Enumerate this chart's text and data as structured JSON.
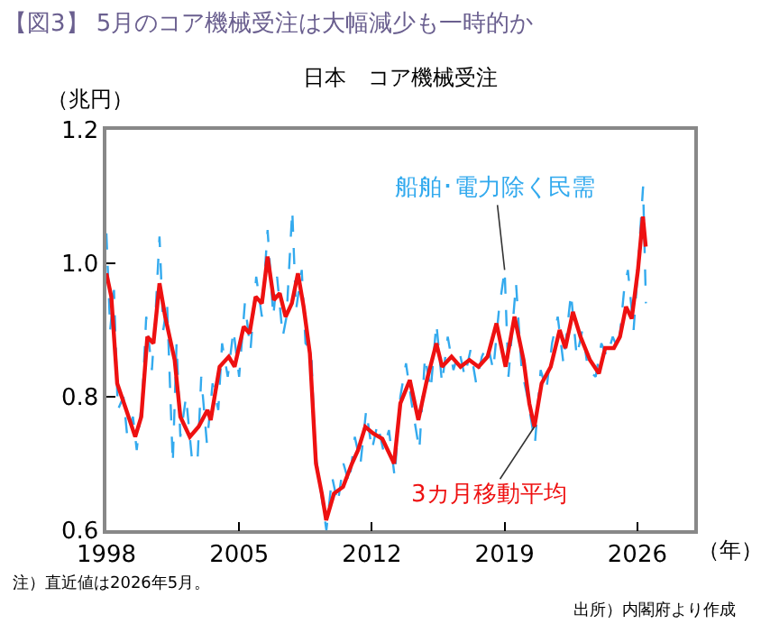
{
  "chart_data": {
    "type": "line",
    "title": "【図3】 5月のコア機械受注は大幅減少も一時的か",
    "subtitle": "日本　コア機械受注",
    "ylabel": "（兆円）",
    "xlabel": "（年）",
    "annotations": [
      "注）直近値は2026年5月。",
      "出所）内閣府より作成",
      {
        "text": "船舶･電力除く民需",
        "x": 2019.0,
        "y": 0.99
      },
      {
        "text": "3カ月移動平均",
        "x": 2020.57,
        "y": 0.755
      }
    ],
    "xlim": [
      1998,
      2029
    ],
    "xticks": [
      1998,
      2005,
      2012,
      2019,
      2026
    ],
    "ylim": [
      0.6,
      1.2
    ],
    "yticks": [
      {
        "value": 0.6,
        "label": "0.6"
      },
      {
        "value": 0.8,
        "label": "0.8"
      },
      {
        "value": 1.0,
        "label": "1.0"
      },
      {
        "value": 1.2,
        "label": "1.2"
      }
    ],
    "legend": false,
    "series": [
      {
        "color": "#33aaee",
        "line_style": "dashed",
        "x": [
          1998.0,
          1998.2,
          1998.4,
          1998.6,
          1998.9,
          1999.1,
          1999.4,
          1999.6,
          1999.9,
          2000.1,
          2000.4,
          2000.6,
          2000.8,
          2001.0,
          2001.2,
          2001.5,
          2001.7,
          2001.9,
          2002.2,
          2002.5,
          2002.8,
          2003.0,
          2003.3,
          2003.6,
          2003.9,
          2004.1,
          2004.4,
          2004.7,
          2005.0,
          2005.3,
          2005.6,
          2005.9,
          2006.2,
          2006.5,
          2006.8,
          2007.0,
          2007.3,
          2007.5,
          2007.8,
          2008.0,
          2008.3,
          2008.5,
          2008.8,
          2009.0,
          2009.3,
          2009.6,
          2009.9,
          2010.2,
          2010.5,
          2010.8,
          2011.1,
          2011.4,
          2011.7,
          2012.0,
          2012.3,
          2012.6,
          2012.9,
          2013.2,
          2013.5,
          2013.8,
          2014.1,
          2014.5,
          2014.8,
          2015.1,
          2015.4,
          2015.7,
          2016.0,
          2016.3,
          2016.6,
          2016.9,
          2017.2,
          2017.5,
          2017.8,
          2018.1,
          2018.4,
          2018.7,
          2019.0,
          2019.2,
          2019.6,
          2019.9,
          2020.2,
          2020.6,
          2020.9,
          2021.2,
          2021.5,
          2021.8,
          2022.1,
          2022.5,
          2022.8,
          2023.1,
          2023.4,
          2023.8,
          2024.1,
          2024.4,
          2024.7,
          2025.0,
          2025.3,
          2025.5,
          2025.8,
          2026.0,
          2026.3,
          2026.45
        ],
        "values": [
          1.045,
          0.9,
          0.96,
          0.78,
          0.8,
          0.74,
          0.77,
          0.72,
          0.8,
          0.92,
          0.84,
          0.93,
          1.04,
          0.9,
          0.94,
          0.7,
          0.88,
          0.74,
          0.8,
          0.71,
          0.7,
          0.83,
          0.73,
          0.82,
          0.78,
          0.88,
          0.83,
          0.9,
          0.83,
          0.94,
          0.87,
          0.98,
          0.92,
          1.05,
          0.92,
          0.98,
          0.89,
          0.92,
          1.08,
          0.93,
          0.99,
          0.88,
          0.87,
          0.72,
          0.66,
          0.6,
          0.68,
          0.64,
          0.7,
          0.67,
          0.74,
          0.7,
          0.78,
          0.72,
          0.76,
          0.72,
          0.75,
          0.68,
          0.8,
          0.85,
          0.79,
          0.72,
          0.86,
          0.81,
          0.91,
          0.82,
          0.89,
          0.84,
          0.87,
          0.83,
          0.87,
          0.82,
          0.86,
          0.88,
          0.84,
          0.93,
          0.99,
          0.83,
          0.97,
          0.84,
          0.8,
          0.73,
          0.84,
          0.81,
          0.88,
          0.92,
          0.85,
          0.955,
          0.86,
          0.9,
          0.84,
          0.83,
          0.88,
          0.86,
          0.89,
          0.87,
          0.96,
          0.99,
          0.9,
          0.98,
          1.115,
          0.94
        ]
      },
      {
        "color": "#ee1111",
        "line_style": "solid",
        "x": [
          1998.0,
          1998.26,
          1998.57,
          1999.05,
          1999.52,
          1999.84,
          2000.16,
          2000.48,
          2000.8,
          2001.1,
          2001.6,
          2001.9,
          2002.4,
          2002.86,
          2003.33,
          2003.5,
          2003.97,
          2004.45,
          2004.76,
          2005.24,
          2005.55,
          2005.87,
          2006.2,
          2006.5,
          2006.83,
          2007.14,
          2007.45,
          2007.78,
          2008.1,
          2008.4,
          2008.73,
          2009.05,
          2009.36,
          2009.59,
          2010.0,
          2010.48,
          2010.95,
          2011.27,
          2011.65,
          2012.07,
          2012.55,
          2013.17,
          2013.5,
          2014.0,
          2014.45,
          2014.9,
          2015.4,
          2015.7,
          2016.2,
          2016.67,
          2017.14,
          2017.62,
          2018.1,
          2018.57,
          2019.05,
          2019.52,
          2020.0,
          2020.3,
          2020.57,
          2020.95,
          2021.43,
          2021.9,
          2022.2,
          2022.6,
          2023.0,
          2023.5,
          2023.97,
          2024.3,
          2024.76,
          2025.08,
          2025.4,
          2025.7,
          2026.03,
          2026.29,
          2026.44
        ],
        "values": [
          0.985,
          0.95,
          0.82,
          0.78,
          0.74,
          0.77,
          0.89,
          0.88,
          0.97,
          0.92,
          0.855,
          0.77,
          0.74,
          0.755,
          0.78,
          0.765,
          0.845,
          0.86,
          0.845,
          0.905,
          0.895,
          0.95,
          0.94,
          1.01,
          0.945,
          0.955,
          0.92,
          0.94,
          0.985,
          0.935,
          0.865,
          0.7,
          0.655,
          0.615,
          0.655,
          0.665,
          0.7,
          0.72,
          0.755,
          0.745,
          0.737,
          0.7,
          0.79,
          0.825,
          0.765,
          0.825,
          0.88,
          0.845,
          0.86,
          0.845,
          0.855,
          0.845,
          0.86,
          0.91,
          0.845,
          0.92,
          0.855,
          0.79,
          0.755,
          0.82,
          0.845,
          0.9,
          0.873,
          0.927,
          0.89,
          0.855,
          0.835,
          0.873,
          0.873,
          0.89,
          0.935,
          0.917,
          0.99,
          1.07,
          1.025
        ]
      }
    ]
  }
}
